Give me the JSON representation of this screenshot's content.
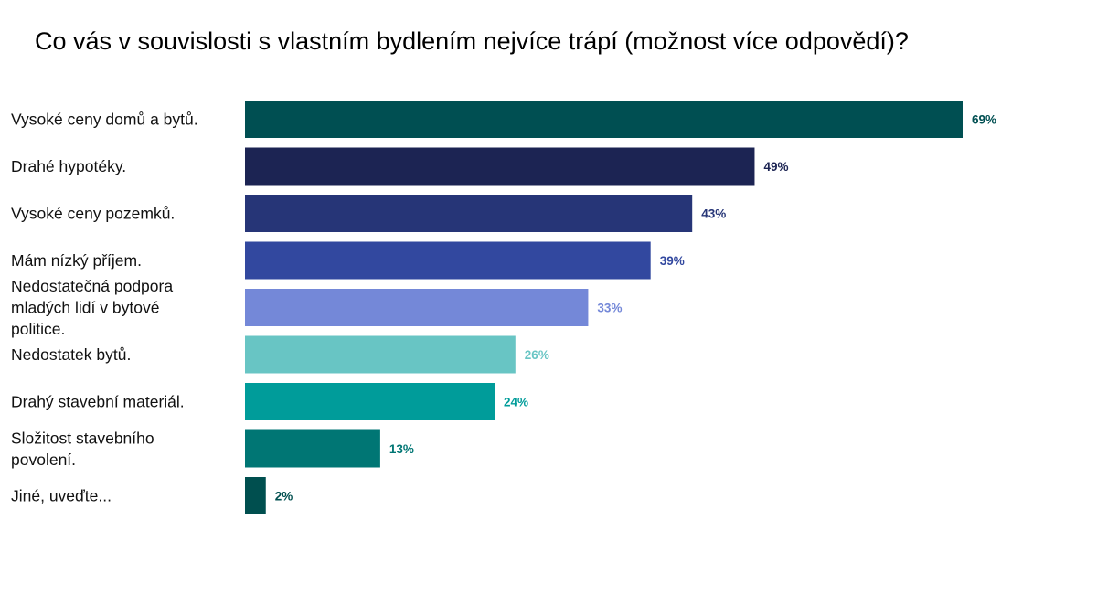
{
  "chart_data": {
    "type": "bar",
    "orientation": "horizontal",
    "title": "Co vás v souvislosti s vlastním bydlením nejvíce trápí (možnost více odpovědí)?",
    "categories": [
      "Vysoké ceny domů a bytů.",
      "Drahé hypotéky.",
      "Vysoké ceny pozemků.",
      "Mám nízký příjem.",
      "Nedostatečná podpora mladých lidí v bytové politice.",
      "Nedostatek bytů.",
      "Drahý stavební materiál.",
      "Složitost stavebního povolení.",
      "Jiné, uveďte..."
    ],
    "category_lines": [
      [
        "Vysoké ceny domů a bytů."
      ],
      [
        "Drahé hypotéky."
      ],
      [
        "Vysoké ceny pozemků."
      ],
      [
        "Mám nízký příjem."
      ],
      [
        "Nedostatečná podpora",
        "mladých lidí v bytové",
        "politice."
      ],
      [
        "Nedostatek bytů."
      ],
      [
        "Drahý stavební materiál."
      ],
      [
        "Složitost stavebního",
        "povolení."
      ],
      [
        "Jiné, uveďte..."
      ]
    ],
    "values": [
      69,
      49,
      43,
      39,
      33,
      26,
      24,
      13,
      2
    ],
    "value_labels": [
      "69%",
      "49%",
      "43%",
      "39%",
      "33%",
      "26%",
      "24%",
      "13%",
      "2%"
    ],
    "unit": "%",
    "xlim": [
      0,
      69
    ],
    "grid": false,
    "legend": "none",
    "colors": [
      "#004F52",
      "#1C2453",
      "#263577",
      "#32489F",
      "#7488D8",
      "#68C5C4",
      "#009C9A",
      "#007674",
      "#004F4F"
    ]
  }
}
